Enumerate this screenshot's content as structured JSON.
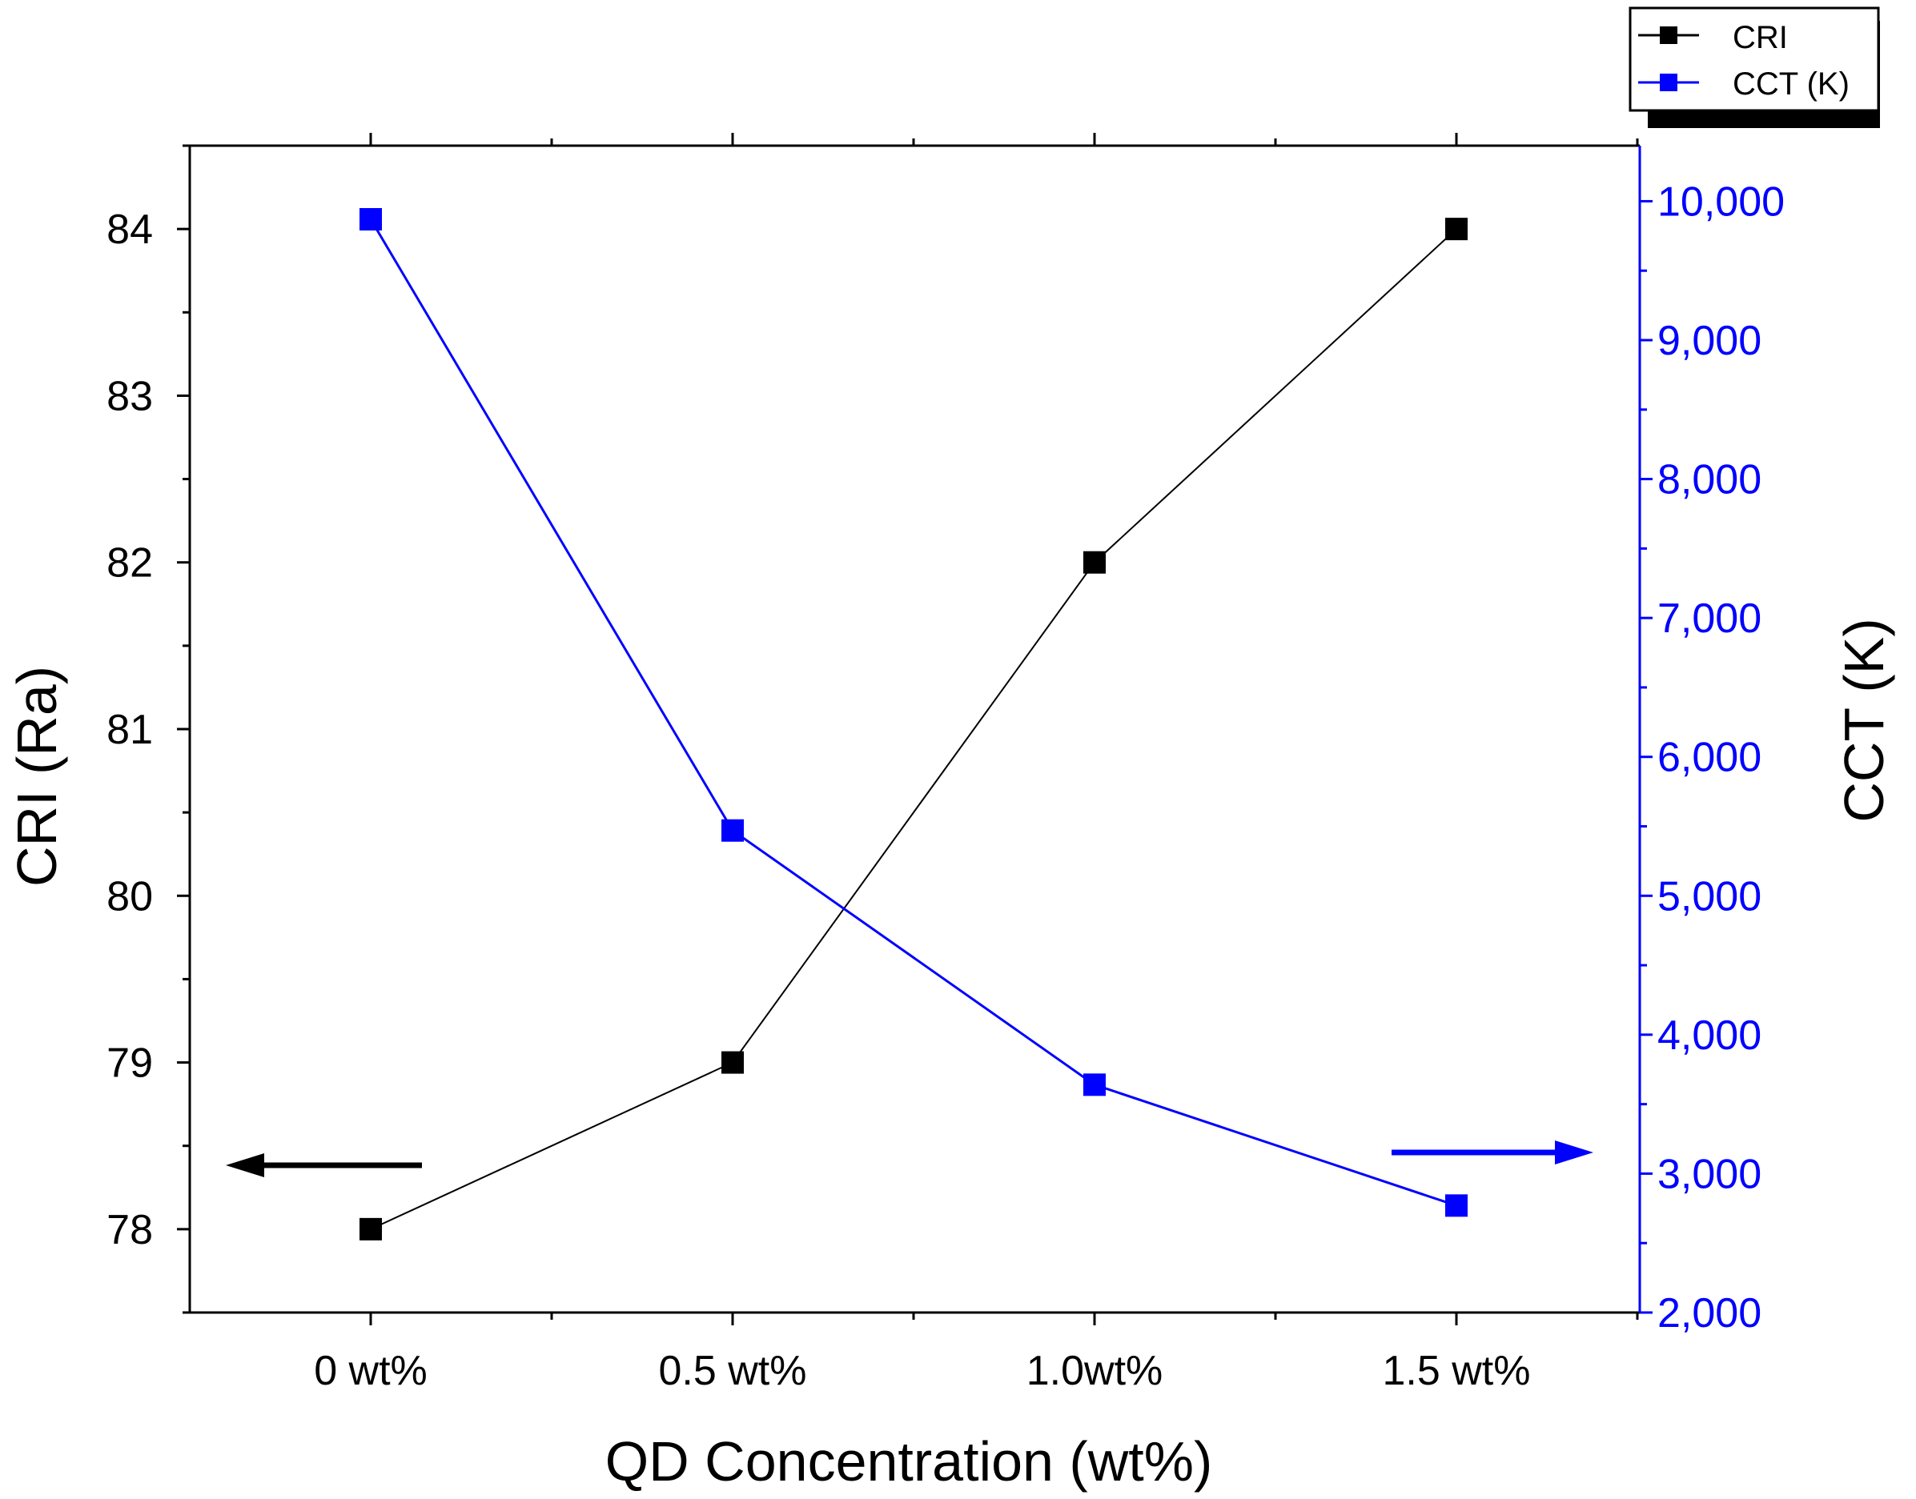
{
  "chart_data": {
    "type": "line",
    "categories": [
      "0 wt%",
      "0.5 wt%",
      "1.0wt%",
      "1.5 wt%"
    ],
    "xlabel": "QD Concentration (wt%)",
    "y_left": {
      "label": "CRI (Ra)",
      "range": [
        77.5,
        84.5
      ],
      "ticks": [
        78,
        79,
        80,
        81,
        82,
        83,
        84
      ],
      "tick_labels": [
        "78",
        "79",
        "80",
        "81",
        "82",
        "83",
        "84"
      ],
      "color": "#000000"
    },
    "y_right": {
      "label": "CCT (K)",
      "range": [
        2000,
        10400
      ],
      "ticks": [
        2000,
        3000,
        4000,
        5000,
        6000,
        7000,
        8000,
        9000,
        10000
      ],
      "tick_labels": [
        "2,000",
        "3,000",
        "4,000",
        "5,000",
        "6,000",
        "7,000",
        "8,000",
        "9,000",
        "10,000"
      ],
      "color": "#0000ff"
    },
    "series": [
      {
        "name": "CRI",
        "axis": "left",
        "color": "#000000",
        "values": [
          78,
          79,
          82,
          84
        ]
      },
      {
        "name": "CCT (K)",
        "axis": "right",
        "color": "#0000ff",
        "values": [
          9870,
          5470,
          3640,
          2770
        ]
      }
    ],
    "legend_position": "top-right",
    "annotations": [
      {
        "type": "arrow",
        "direction": "left",
        "color": "#000000",
        "points_to": "left axis"
      },
      {
        "type": "arrow",
        "direction": "right",
        "color": "#0000ff",
        "points_to": "right axis"
      }
    ]
  }
}
